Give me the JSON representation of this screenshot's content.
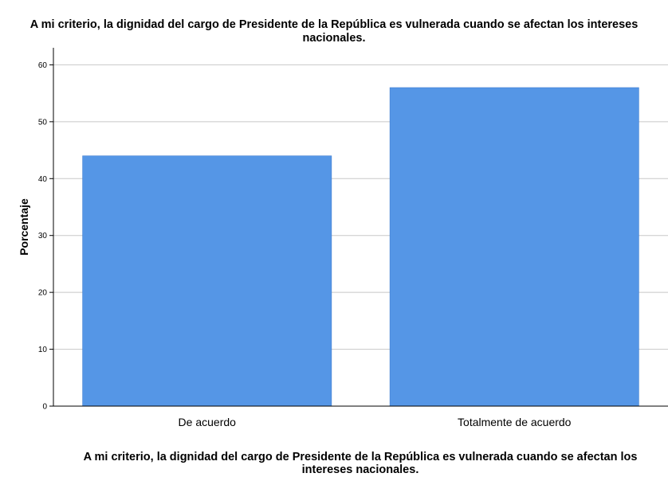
{
  "chart_data": {
    "type": "bar",
    "title_lines": [
      "A mi criterio, la dignidad del cargo de Presidente de la República es vulnerada cuando se afectan los intereses",
      "nacionales."
    ],
    "xlabel_lines": [
      "A mi criterio, la dignidad del cargo de Presidente de la República es vulnerada cuando se afectan los",
      "intereses nacionales."
    ],
    "ylabel": "Porcentaje",
    "categories": [
      "De acuerdo",
      "Totalmente de acuerdo"
    ],
    "values": [
      44,
      56
    ],
    "yticks": [
      "0",
      "10",
      "20",
      "30",
      "40",
      "50",
      "60"
    ],
    "ylim": [
      0,
      63
    ],
    "grid": true,
    "bar_color": "#5596e6",
    "bar_edge_color": "#3d7bd0",
    "grid_color": "#c8c8c8",
    "axis_color": "#000000"
  }
}
